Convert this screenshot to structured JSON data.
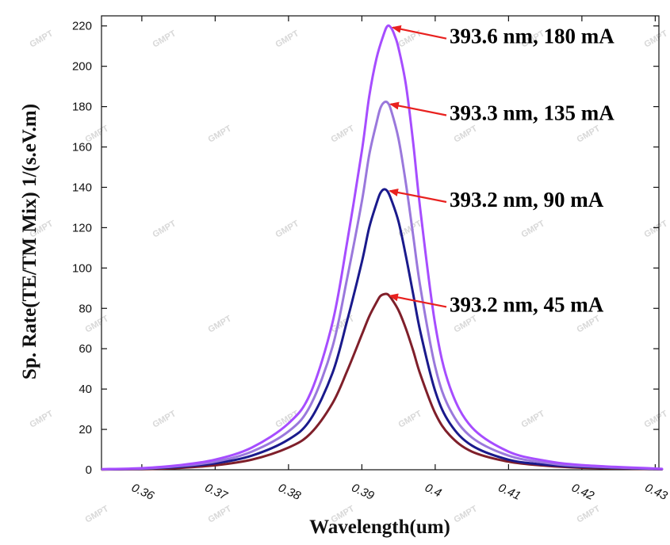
{
  "watermark": {
    "text": "GMPT",
    "color": "#d9d9d9"
  },
  "chart_data": {
    "type": "line",
    "title": "",
    "xlabel": "Wavelength(um)",
    "ylabel": "Sp. Rate(TE/TM Mix)  1/(s.eV.m)",
    "xlim": [
      0.3545,
      0.4305
    ],
    "ylim": [
      0,
      225
    ],
    "grid": false,
    "x_ticks": [
      0.36,
      0.37,
      0.38,
      0.39,
      0.4,
      0.41,
      0.42,
      0.43
    ],
    "x_tick_labels": [
      "0.36",
      "0.37",
      "0.38",
      "0.39",
      "0.4",
      "0.41",
      "0.42",
      "0.43"
    ],
    "y_ticks": [
      0,
      20,
      40,
      60,
      80,
      100,
      120,
      140,
      160,
      180,
      200,
      220
    ],
    "y_tick_labels": [
      "0",
      "20",
      "40",
      "60",
      "80",
      "100",
      "120",
      "140",
      "160",
      "180",
      "200",
      "220"
    ],
    "series": [
      {
        "color": "#7f1f2a",
        "x": [
          0.3545,
          0.36,
          0.365,
          0.37,
          0.375,
          0.38,
          0.383,
          0.386,
          0.388,
          0.39,
          0.391,
          0.392,
          0.3925,
          0.393,
          0.3935,
          0.394,
          0.395,
          0.396,
          0.397,
          0.398,
          0.4,
          0.402,
          0.405,
          0.41,
          0.415,
          0.42,
          0.43,
          0.4305
        ],
        "values": [
          0.1,
          0.3,
          0.9,
          2.2,
          5,
          11,
          18,
          33,
          49,
          67,
          76,
          83,
          86,
          87,
          87,
          85,
          79,
          70,
          59,
          47,
          28,
          17,
          9,
          4,
          2,
          1,
          0.3,
          0.2
        ]
      },
      {
        "color": "#1a1a8c",
        "x": [
          0.3545,
          0.36,
          0.365,
          0.37,
          0.375,
          0.38,
          0.383,
          0.386,
          0.388,
          0.39,
          0.391,
          0.392,
          0.3925,
          0.393,
          0.3935,
          0.394,
          0.395,
          0.396,
          0.397,
          0.398,
          0.4,
          0.402,
          0.405,
          0.41,
          0.415,
          0.42,
          0.43,
          0.4305
        ],
        "values": [
          0.2,
          0.5,
          1.4,
          3.2,
          7,
          15,
          25,
          48,
          74,
          103,
          120,
          132,
          137,
          139,
          138,
          134,
          123,
          106,
          87,
          68,
          39,
          23,
          12,
          5,
          2.5,
          1.4,
          0.4,
          0.3
        ]
      },
      {
        "color": "#9a78dc",
        "x": [
          0.3545,
          0.36,
          0.365,
          0.37,
          0.375,
          0.38,
          0.383,
          0.386,
          0.388,
          0.39,
          0.391,
          0.392,
          0.3925,
          0.393,
          0.3935,
          0.394,
          0.395,
          0.396,
          0.397,
          0.398,
          0.4,
          0.402,
          0.405,
          0.41,
          0.415,
          0.42,
          0.43,
          0.4305
        ],
        "values": [
          0.2,
          0.6,
          1.8,
          4,
          9,
          19,
          32,
          61,
          95,
          133,
          156,
          172,
          179,
          182,
          182,
          178,
          164,
          142,
          116,
          90,
          51,
          30,
          16,
          7,
          3.5,
          1.8,
          0.5,
          0.4
        ]
      },
      {
        "color": "#a64dff",
        "x": [
          0.3545,
          0.36,
          0.365,
          0.37,
          0.375,
          0.38,
          0.383,
          0.386,
          0.388,
          0.39,
          0.391,
          0.392,
          0.393,
          0.3935,
          0.394,
          0.3945,
          0.395,
          0.396,
          0.397,
          0.398,
          0.4,
          0.402,
          0.405,
          0.41,
          0.415,
          0.42,
          0.43,
          0.4305
        ],
        "values": [
          0.3,
          0.8,
          2.2,
          5,
          11,
          23,
          38,
          73,
          113,
          158,
          185,
          204,
          216,
          220,
          219,
          215,
          209,
          191,
          162,
          128,
          72,
          41,
          21,
          9,
          4.5,
          2.3,
          0.6,
          0.5
        ]
      }
    ],
    "annotations": [
      {
        "text": "393.6 nm, 180 mA",
        "x": 0.3936,
        "y": 220,
        "arrow_color": "#e8211f"
      },
      {
        "text": "393.3 nm, 135 mA",
        "x": 0.3933,
        "y": 182,
        "arrow_color": "#e8211f"
      },
      {
        "text": "393.2 nm, 90 mA",
        "x": 0.3932,
        "y": 139,
        "arrow_color": "#e8211f"
      },
      {
        "text": "393.2 nm, 45 mA",
        "x": 0.3932,
        "y": 87,
        "arrow_color": "#e8211f"
      }
    ]
  }
}
